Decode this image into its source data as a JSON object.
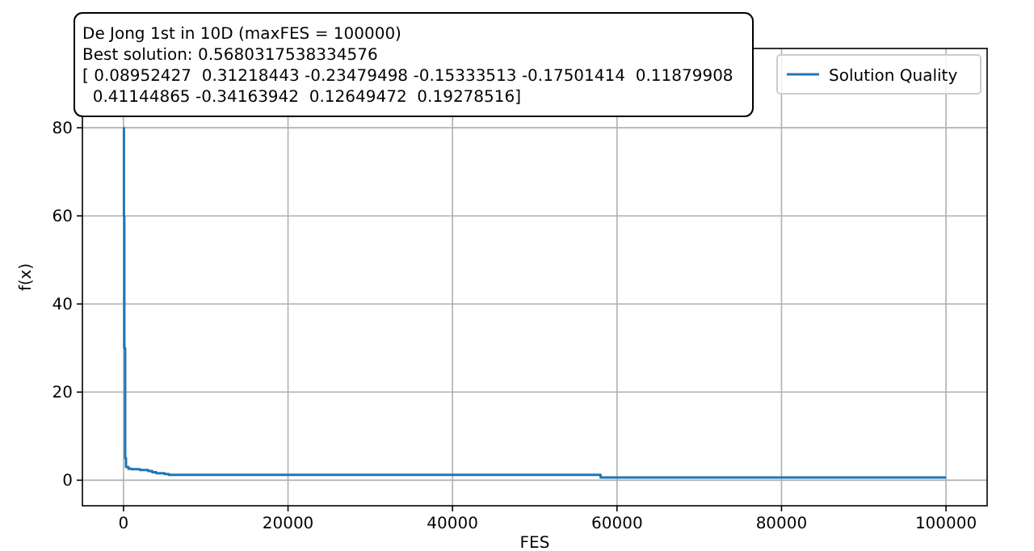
{
  "chart_data": {
    "type": "step",
    "xlabel": "FES",
    "ylabel": "f(x)",
    "annotations": [
      "De Jong 1st in 10D (maxFES = 100000)\nBest solution: 0.5680317538334576\n[ 0.08952427  0.31218443 -0.23479498 -0.15333513 -0.17501414  0.11879908\n  0.41144865 -0.34163942  0.12649472  0.19278516]"
    ],
    "series": [
      {
        "name": "Solution Quality",
        "color": "#1f77b4",
        "x": [
          0,
          50,
          100,
          200,
          300,
          600,
          1000,
          2000,
          3000,
          3500,
          4000,
          5000,
          5500,
          20000,
          40000,
          57800,
          58000,
          80000,
          100000
        ],
        "values": [
          80,
          60,
          30,
          5,
          3,
          2.6,
          2.5,
          2.3,
          2.1,
          1.8,
          1.6,
          1.4,
          1.2,
          1.2,
          1.2,
          1.2,
          0.6,
          0.6,
          0.6
        ]
      }
    ],
    "xlim": [
      -5000,
      105000
    ],
    "xticks": [
      0,
      20000,
      40000,
      60000,
      80000,
      100000
    ],
    "ylim": [
      -5.8,
      98
    ],
    "yticks": [
      0,
      20,
      40,
      60,
      80
    ],
    "grid": true,
    "legend": "top right"
  }
}
